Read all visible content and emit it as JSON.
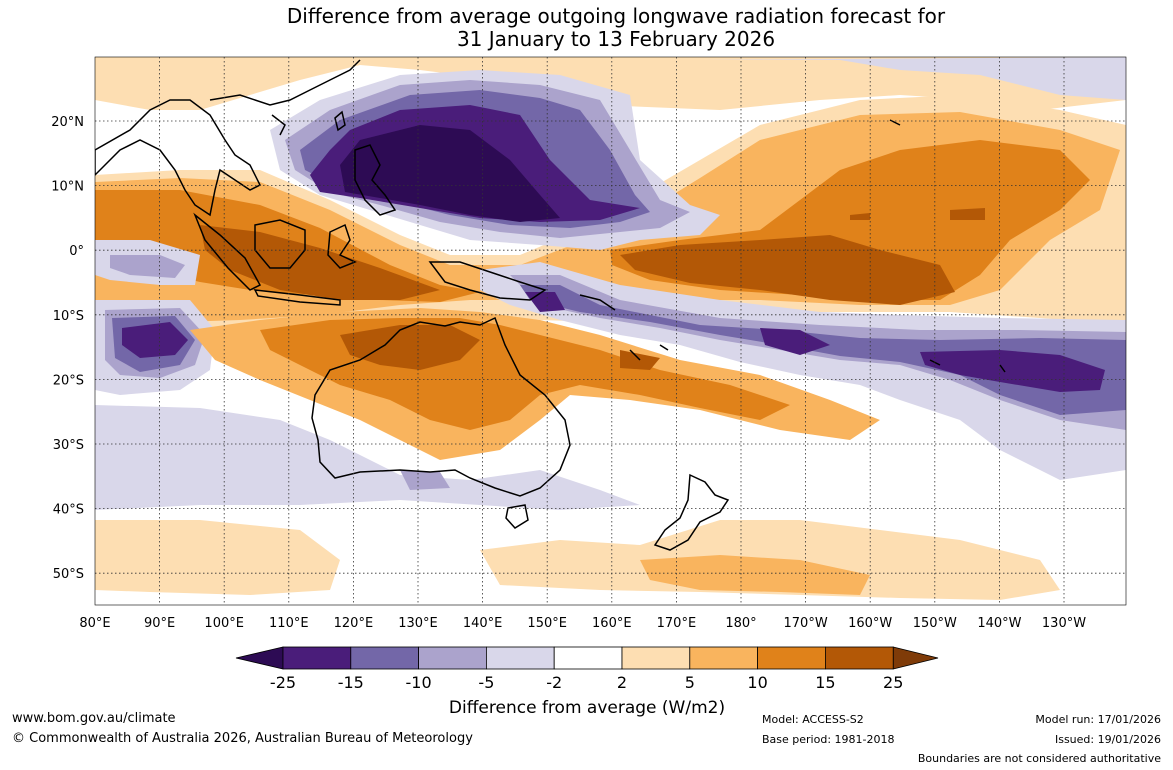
{
  "title": {
    "line1": "Difference from average outgoing longwave radiation forecast for",
    "line2": "31 January to 13 February 2026"
  },
  "map": {
    "lat_labels": [
      "20°N",
      "10°N",
      "0°",
      "10°S",
      "20°S",
      "30°S",
      "40°S",
      "50°S"
    ],
    "lon_labels": [
      "80°E",
      "90°E",
      "100°E",
      "110°E",
      "120°E",
      "130°E",
      "140°E",
      "150°E",
      "160°E",
      "170°E",
      "180°",
      "170°W",
      "160°W",
      "150°W",
      "140°W",
      "130°W"
    ]
  },
  "legend": {
    "ticks": [
      "-25",
      "-15",
      "-10",
      "-5",
      "-2",
      "2",
      "5",
      "10",
      "15",
      "25"
    ],
    "colors": [
      "#4a1d7a",
      "#7367a8",
      "#aba3cc",
      "#d9d7ea",
      "#ffffff",
      "#fddeb2",
      "#f9b45e",
      "#e0821a",
      "#b35806"
    ],
    "low_color": "#2d0b54",
    "high_color": "#7f3b08",
    "label": "Difference from average (W/m2)"
  },
  "footer": {
    "website": "www.bom.gov.au/climate",
    "copyright": "© Commonwealth of Australia 2026, Australian Bureau of Meteorology",
    "model": "Model: ACCESS-S2",
    "base_period": "Base period: 1981-2018",
    "model_run": "Model run: 17/01/2026",
    "issued": "Issued: 19/01/2026",
    "disclaimer": "Boundaries are not considered authoritative"
  }
}
